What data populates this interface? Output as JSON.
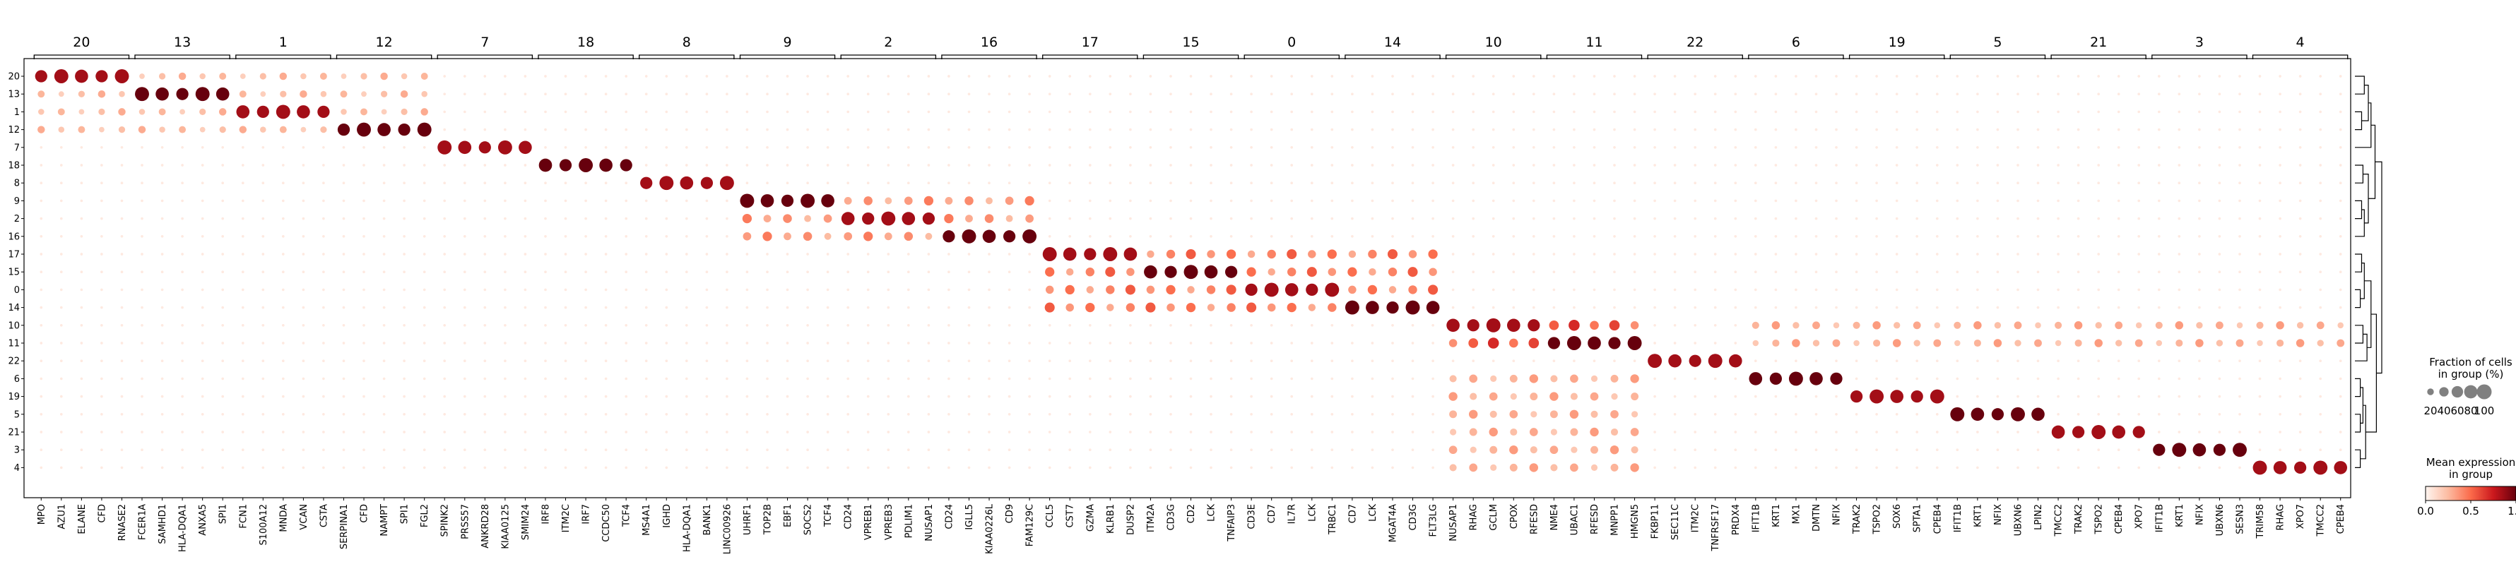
{
  "chart_data": {
    "type": "scatter",
    "subtype": "dot-plot",
    "rows": [
      "20",
      "13",
      "1",
      "12",
      "7",
      "18",
      "8",
      "9",
      "2",
      "16",
      "17",
      "15",
      "0",
      "14",
      "10",
      "11",
      "22",
      "6",
      "19",
      "5",
      "21",
      "3",
      "4"
    ],
    "groups": [
      {
        "label": "20",
        "genes": [
          "MPO",
          "AZU1",
          "ELANE",
          "CFD",
          "RNASE2"
        ]
      },
      {
        "label": "13",
        "genes": [
          "FCER1A",
          "SAMHD1",
          "HLA-DQA1",
          "ANXA5",
          "SPI1"
        ]
      },
      {
        "label": "1",
        "genes": [
          "FCN1",
          "S100A12",
          "MNDA",
          "VCAN",
          "CSTA"
        ]
      },
      {
        "label": "12",
        "genes": [
          "SERPINA1",
          "CFD",
          "NAMPT",
          "SPI1",
          "FGL2"
        ]
      },
      {
        "label": "7",
        "genes": [
          "SPINK2",
          "PRSS57",
          "ANKRD28",
          "KIAA0125",
          "SMIM24"
        ]
      },
      {
        "label": "18",
        "genes": [
          "IRF8",
          "ITM2C",
          "IRF7",
          "CCDC50",
          "TCF4"
        ]
      },
      {
        "label": "8",
        "genes": [
          "MS4A1",
          "IGHD",
          "HLA-DQA1",
          "BANK1",
          "LINC00926"
        ]
      },
      {
        "label": "9",
        "genes": [
          "UHRF1",
          "TOP2B",
          "EBF1",
          "SOCS2",
          "TCF4"
        ]
      },
      {
        "label": "2",
        "genes": [
          "CD24",
          "VPREB1",
          "VPREB3",
          "PDLIM1",
          "NUSAP1"
        ]
      },
      {
        "label": "16",
        "genes": [
          "CD24",
          "IGLL5",
          "KIAA0226L",
          "CD9",
          "FAM129C"
        ]
      },
      {
        "label": "17",
        "genes": [
          "CCL5",
          "CST7",
          "GZMA",
          "KLRB1",
          "DUSP2"
        ]
      },
      {
        "label": "15",
        "genes": [
          "ITM2A",
          "CD3G",
          "CD2",
          "LCK",
          "TNFAIP3"
        ]
      },
      {
        "label": "0",
        "genes": [
          "CD3E",
          "CD7",
          "IL7R",
          "LCK",
          "TRBC1"
        ]
      },
      {
        "label": "14",
        "genes": [
          "CD7",
          "LCK",
          "MGAT4A",
          "CD3G",
          "FLT3LG"
        ]
      },
      {
        "label": "10",
        "genes": [
          "NUSAP1",
          "RHAG",
          "GCLM",
          "CPOX",
          "RFESD"
        ]
      },
      {
        "label": "11",
        "genes": [
          "NME4",
          "UBAC1",
          "RFESD",
          "MNPP1",
          "HMGN5"
        ]
      },
      {
        "label": "22",
        "genes": [
          "FKBP11",
          "SEC11C",
          "ITM2C",
          "TNFRSF17",
          "PRDX4"
        ]
      },
      {
        "label": "6",
        "genes": [
          "IFIT1B",
          "KRT1",
          "MX1",
          "DMTN",
          "NFIX"
        ]
      },
      {
        "label": "19",
        "genes": [
          "TRAK2",
          "TSPO2",
          "SOX6",
          "SPTA1",
          "CPEB4"
        ]
      },
      {
        "label": "5",
        "genes": [
          "IFIT1B",
          "KRT1",
          "NFIX",
          "UBXN6",
          "LPIN2"
        ]
      },
      {
        "label": "21",
        "genes": [
          "TMCC2",
          "TRAK2",
          "TSPO2",
          "CPEB4",
          "XPO7"
        ]
      },
      {
        "label": "3",
        "genes": [
          "IFIT1B",
          "KRT1",
          "NFIX",
          "UBXN6",
          "SESN3"
        ]
      },
      {
        "label": "4",
        "genes": [
          "TRIM58",
          "RHAG",
          "XPO7",
          "TMCC2",
          "CPEB4"
        ]
      }
    ],
    "highlight_fraction": 90,
    "highlight_expression": 0.85,
    "background_fraction": 3,
    "background_expression": 0.05,
    "partial_blocks": [
      {
        "rows": [
          "10",
          "11"
        ],
        "groups": [
          "6",
          "19",
          "5",
          "21",
          "3",
          "4"
        ],
        "fraction": 30,
        "expression": 0.35
      },
      {
        "rows": [
          "11",
          "10"
        ],
        "groups": [
          "10",
          "11"
        ],
        "fraction": 55,
        "expression": 0.7
      },
      {
        "rows": [
          "1",
          "12",
          "20",
          "13"
        ],
        "groups": [
          "20",
          "13",
          "1",
          "12"
        ],
        "fraction": 25,
        "expression": 0.3
      },
      {
        "rows": [
          "9",
          "2",
          "16"
        ],
        "groups": [
          "9",
          "2",
          "16"
        ],
        "fraction": 40,
        "expression": 0.45
      },
      {
        "rows": [
          "17",
          "15",
          "0",
          "14"
        ],
        "groups": [
          "17",
          "15",
          "0",
          "14"
        ],
        "fraction": 45,
        "expression": 0.55
      },
      {
        "rows": [
          "6",
          "19",
          "5",
          "21",
          "3",
          "4"
        ],
        "groups": [
          "10",
          "11"
        ],
        "fraction": 35,
        "expression": 0.35
      }
    ],
    "size_legend": {
      "title_line1": "Fraction of cells",
      "title_line2": "in group (%)",
      "values": [
        20,
        40,
        60,
        80,
        100
      ],
      "labels": [
        "20",
        "40",
        "60",
        "80",
        "100"
      ]
    },
    "color_legend": {
      "title_line1": "Mean expression",
      "title_line2": "in group",
      "ticks": [
        "0.0",
        "0.5",
        "1.0"
      ],
      "colors": [
        "#fff5f0",
        "#fcbba1",
        "#fb6a4a",
        "#cb181d",
        "#67000d"
      ]
    },
    "grid": false,
    "legend_placement": "right"
  }
}
